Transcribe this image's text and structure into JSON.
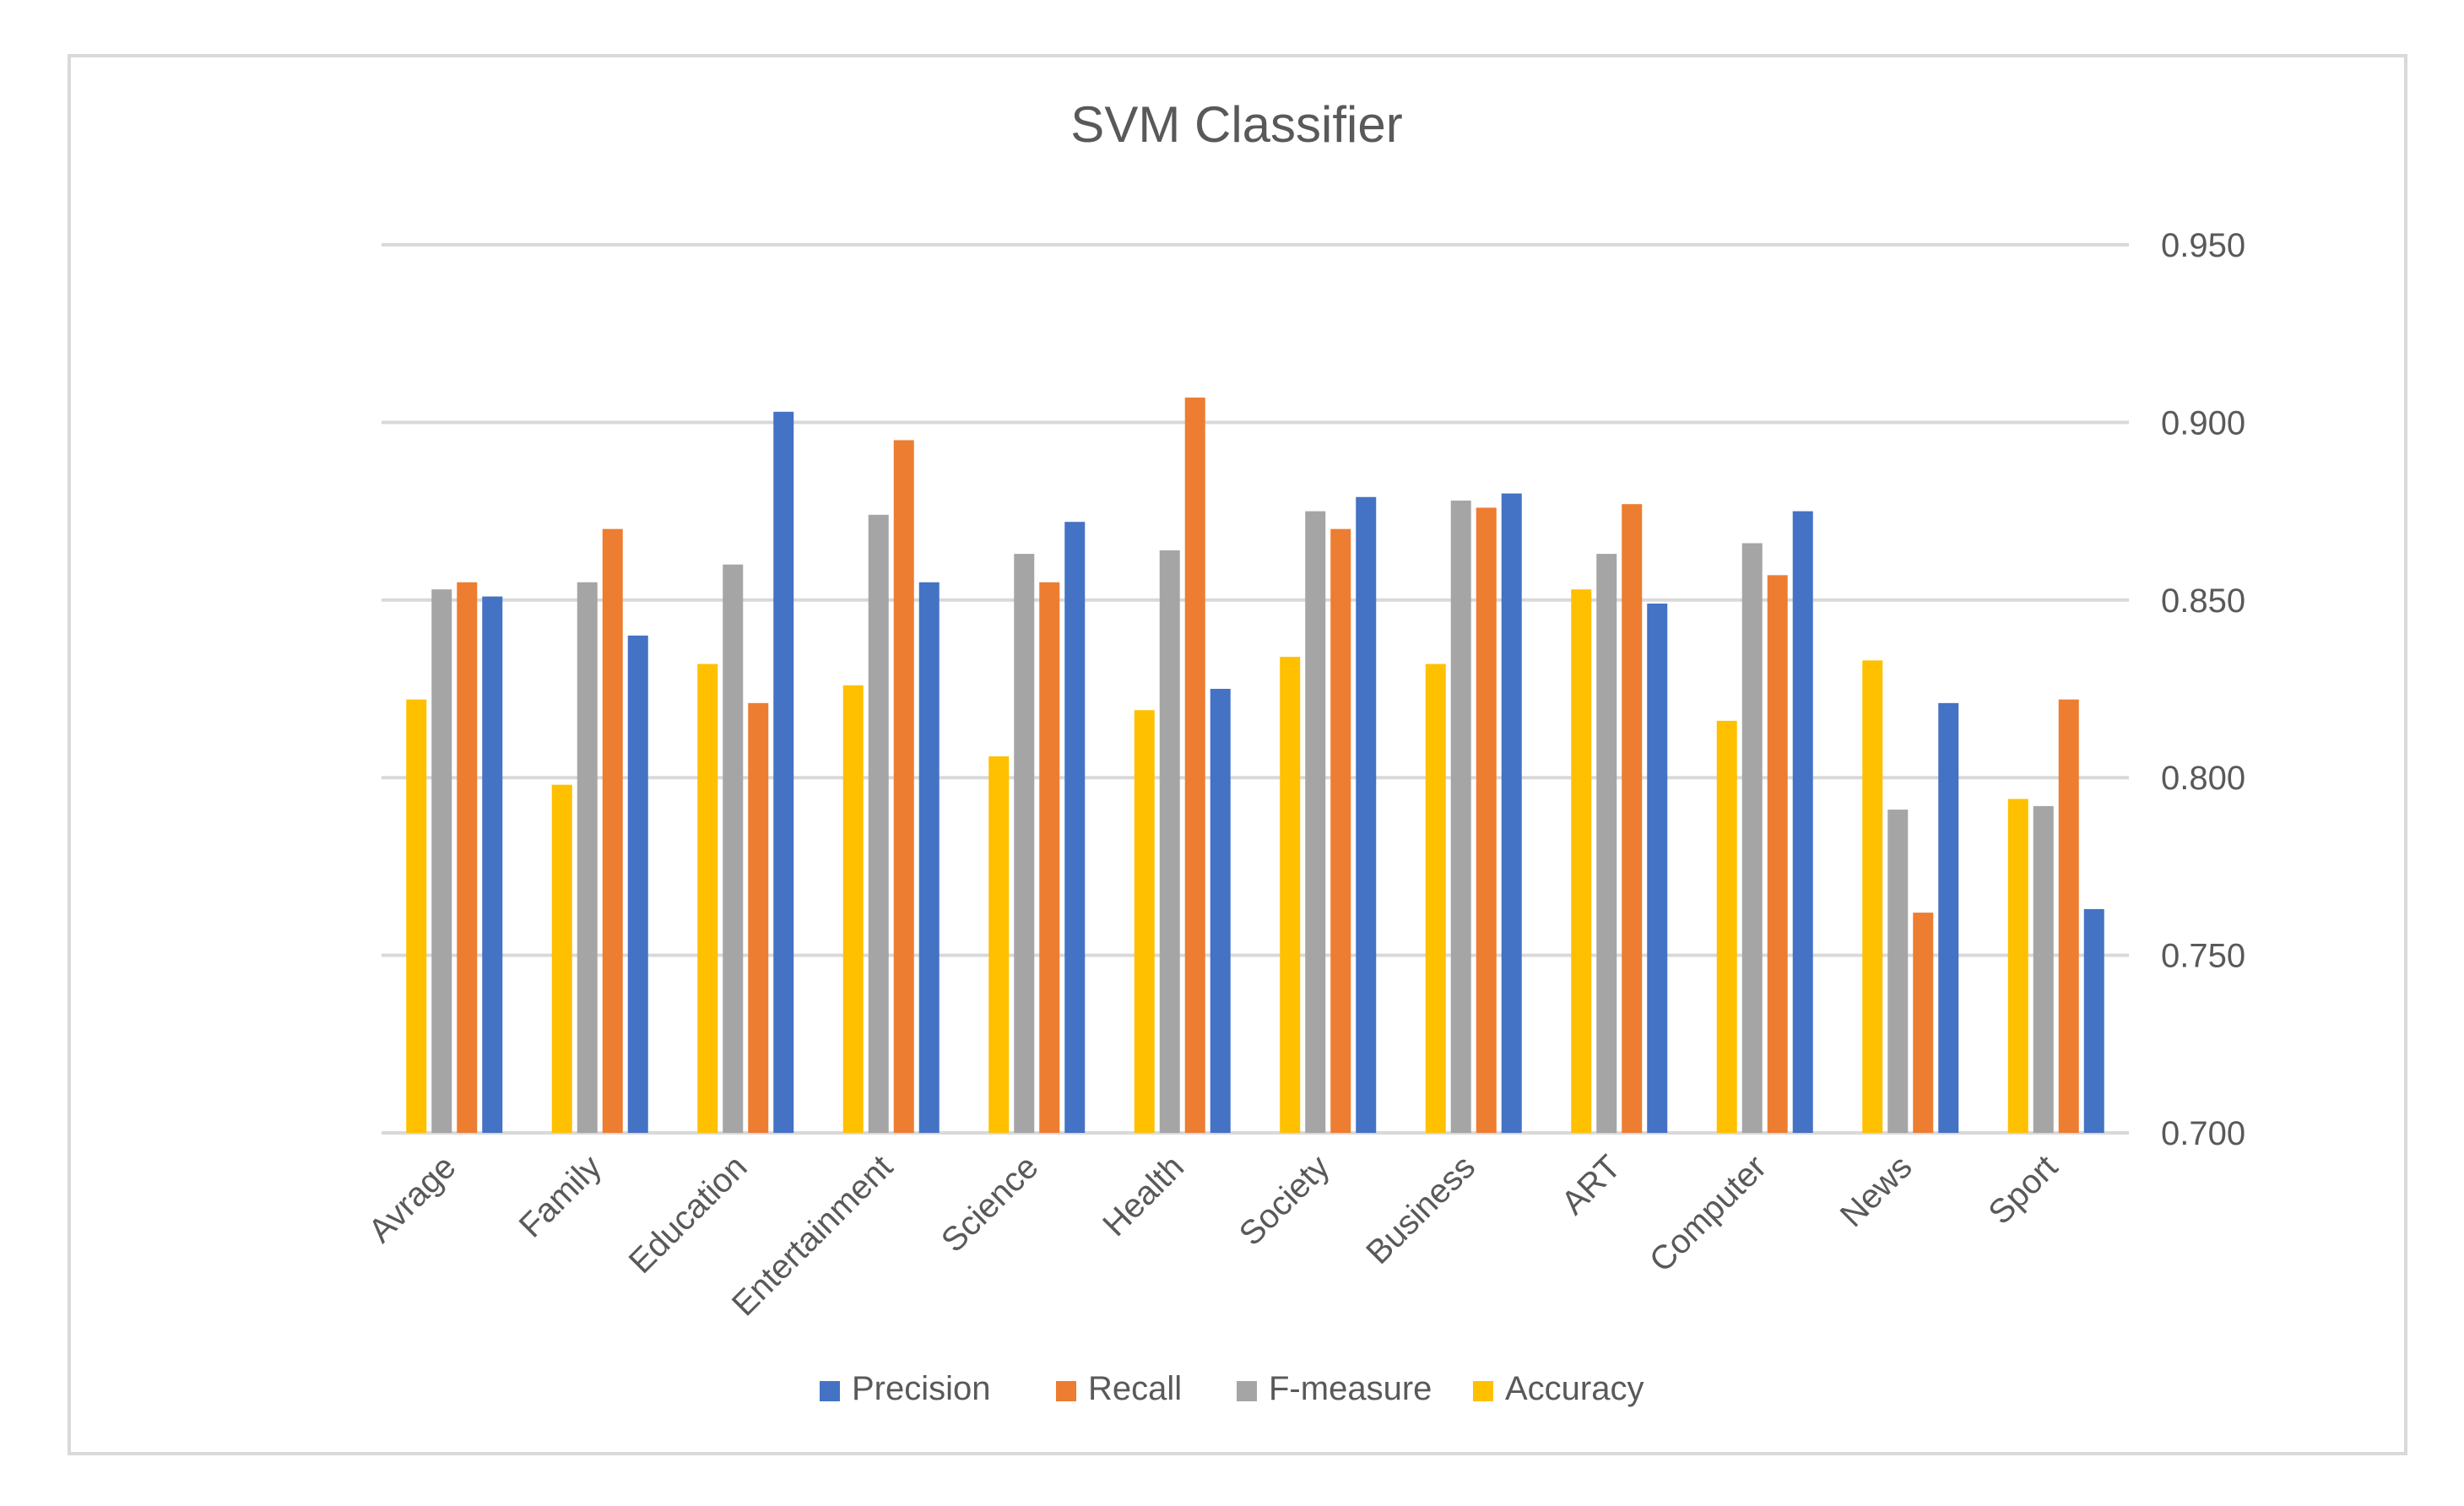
{
  "chart_data": {
    "type": "bar",
    "title": "SVM Classifier",
    "xlabel": "",
    "ylabel": "",
    "ylim": [
      0.7,
      0.95
    ],
    "yticks": [
      "0.700",
      "0.750",
      "0.800",
      "0.850",
      "0.900",
      "0.950"
    ],
    "ytick_values": [
      0.7,
      0.75,
      0.8,
      0.85,
      0.9,
      0.95
    ],
    "axis_side": "right",
    "grid": true,
    "legend_position": "bottom",
    "categories": [
      "Avrage",
      "Family",
      "Education",
      "Entertainment",
      "Science",
      "Health",
      "Society",
      "Business",
      "ART",
      "Computer",
      "News",
      "Sport"
    ],
    "series": [
      {
        "name": "Accuracy",
        "color": "#FFC000",
        "values": [
          0.822,
          0.798,
          0.832,
          0.826,
          0.806,
          0.819,
          0.834,
          0.832,
          0.853,
          0.816,
          0.833,
          0.794
        ]
      },
      {
        "name": "F-measure",
        "color": "#A5A5A5",
        "values": [
          0.853,
          0.855,
          0.86,
          0.874,
          0.863,
          0.864,
          0.875,
          0.878,
          0.863,
          0.866,
          0.791,
          0.792
        ]
      },
      {
        "name": "Recall",
        "color": "#ED7D31",
        "values": [
          0.855,
          0.87,
          0.821,
          0.895,
          0.855,
          0.907,
          0.87,
          0.876,
          0.877,
          0.857,
          0.762,
          0.822
        ]
      },
      {
        "name": "Precision",
        "color": "#4472C4",
        "values": [
          0.851,
          0.84,
          0.903,
          0.855,
          0.872,
          0.825,
          0.879,
          0.88,
          0.849,
          0.875,
          0.821,
          0.763
        ]
      }
    ],
    "legend_order": [
      "Precision",
      "Recall",
      "F-measure",
      "Accuracy"
    ],
    "gridline_color": "#d9d9d9",
    "text_color": "#595959"
  }
}
